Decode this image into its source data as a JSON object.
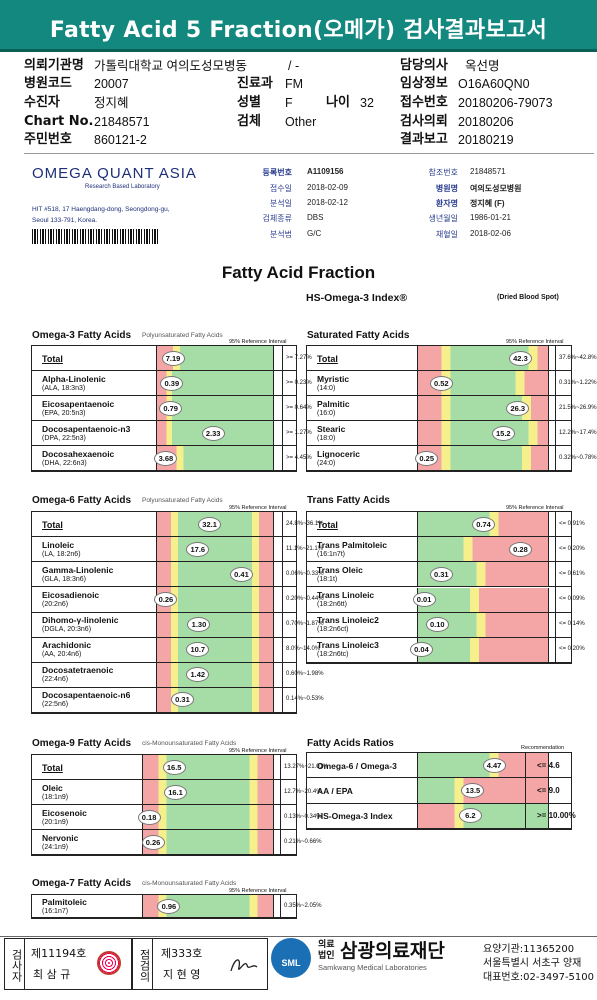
{
  "header": {
    "title": "Fatty Acid 5 Fraction(오메가) 검사결과보고서"
  },
  "patient": {
    "institution_label": "의뢰기관명",
    "institution": "가톨릭대학교 여의도성모병동",
    "institution_extra": "/ -",
    "doctor_label": "담당의사",
    "doctor": "옥선명",
    "hospital_code_label": "병원코드",
    "hospital_code": "20007",
    "dept_label": "진료과",
    "dept": "FM",
    "clinical_label": "임상정보",
    "clinical": "O16A60QN0",
    "examinee_label": "수진자",
    "examinee": "정지혜",
    "sex_label": "성별",
    "sex": "F",
    "age_label": "나이",
    "age": "32",
    "reception_label": "접수번호",
    "reception": "20180206-79073",
    "chart_label": "Chart No.",
    "chart": "21848571",
    "specimen_label": "검체",
    "specimen": "Other",
    "request_label": "검사의뢰",
    "request_date": "20180206",
    "id_label": "주민번호",
    "id": "860121-2",
    "report_label": "결과보고",
    "report_date": "20180219"
  },
  "lab": {
    "name": "OMEGA QUANT ASIA",
    "subtitle": "Research Based Laboratory",
    "address_line1": "HIT #518, 17 Haengdang-dong, Seongdong-gu,",
    "address_line2": "Seoul 133-791, Korea.",
    "reg_no_label": "등록번호",
    "reg_no": "A1109156",
    "received_label": "접수일",
    "received": "2018-02-09",
    "analyzed_label": "분석일",
    "analyzed": "2018-02-12",
    "specimen_type_label": "검체종류",
    "specimen_type": "DBS",
    "method_label": "분석법",
    "method": "G/C",
    "ref_no_label": "참조번호",
    "ref_no": "21848571",
    "hospital_label": "병원명",
    "hospital": "여의도성모병원",
    "patient_label": "환자명",
    "patient": "정지혜 (F)",
    "dob_label": "생년월일",
    "dob": "1986-01-21",
    "collected_label": "채혈일",
    "collected": "2018-02-06"
  },
  "report": {
    "title": "Fatty Acid Fraction",
    "index_label": "HS-Omega-3 Index®",
    "sample_label": "(Dried Blood Spot)"
  },
  "sections": {
    "omega3": {
      "title": "Omega-3 Fatty Acids",
      "subtitle": "Polyunsaturated Fatty Acids",
      "ref_header": "95% Reference Interval",
      "rows": [
        {
          "name": "Total",
          "sub": "",
          "value": "7.19",
          "ref": ">= 7.27%"
        },
        {
          "name": "Alpha-Linolenic",
          "sub": "(ALA, 18:3n3)",
          "value": "0.39",
          "ref": ">= 0.23%"
        },
        {
          "name": "Eicosapentaenoic",
          "sub": "(EPA, 20:5n3)",
          "value": "0.79",
          "ref": ">= 0.64%"
        },
        {
          "name": "Docosapentaenoic-n3",
          "sub": "(DPA, 22:5n3)",
          "value": "2.33",
          "ref": ">= 1.27%"
        },
        {
          "name": "Docosahexaenoic",
          "sub": "(DHA, 22:6n3)",
          "value": "3.68",
          "ref": ">= 4.45%"
        }
      ]
    },
    "saturated": {
      "title": "Saturated Fatty Acids",
      "ref_header": "95% Reference Interval",
      "rows": [
        {
          "name": "Total",
          "sub": "",
          "value": "42.3",
          "ref": "37.6%~42.8%"
        },
        {
          "name": "Myristic",
          "sub": "(14:0)",
          "value": "0.52",
          "ref": "0.31%~1.22%"
        },
        {
          "name": "Palmitic",
          "sub": "(16:0)",
          "value": "26.3",
          "ref": "21.5%~26.9%"
        },
        {
          "name": "Stearic",
          "sub": "(18:0)",
          "value": "15.2",
          "ref": "12.2%~17.4%"
        },
        {
          "name": "Lignoceric",
          "sub": "(24:0)",
          "value": "0.25",
          "ref": "0.32%~0.78%"
        }
      ]
    },
    "omega6": {
      "title": "Omega-6 Fatty Acids",
      "subtitle": "Polyunsaturated Fatty Acids",
      "ref_header": "95% Reference Interval",
      "rows": [
        {
          "name": "Total",
          "sub": "",
          "value": "32.1",
          "ref": "24.8%~36.1%"
        },
        {
          "name": "Linoleic",
          "sub": "(LA, 18:2n6)",
          "value": "17.6",
          "ref": "11.1%~21.1%"
        },
        {
          "name": "Gamma-Linolenic",
          "sub": "(GLA, 18:3n6)",
          "value": "0.41",
          "ref": "0.06%~0.33%"
        },
        {
          "name": "Eicosadienoic",
          "sub": "(20:2n6)",
          "value": "0.26",
          "ref": "0.20%~0.44%"
        },
        {
          "name": "Dihomo-γ-linolenic",
          "sub": "(DGLA, 20:3n6)",
          "value": "1.30",
          "ref": "0.70%~1.87%"
        },
        {
          "name": "Arachidonic",
          "sub": "(AA, 20:4n6)",
          "value": "10.7",
          "ref": "8.0%~14.0%"
        },
        {
          "name": "Docosatetraenoic",
          "sub": "(22:4n6)",
          "value": "1.42",
          "ref": "0.60%~1.98%"
        },
        {
          "name": "Docosapentaenoic-n6",
          "sub": "(22:5n6)",
          "value": "0.31",
          "ref": "0.14%~0.53%"
        }
      ]
    },
    "trans": {
      "title": "Trans Fatty Acids",
      "ref_header": "95% Reference Interval",
      "rows": [
        {
          "name": "Total",
          "sub": "",
          "value": "0.74",
          "ref": "<= 0.91%"
        },
        {
          "name": "Trans Palmitoleic",
          "sub": "(16:1n7t)",
          "value": "0.28",
          "ref": "<= 0.20%"
        },
        {
          "name": "Trans Oleic",
          "sub": "(18:1t)",
          "value": "0.31",
          "ref": "<= 0.61%"
        },
        {
          "name": "Trans Linoleic",
          "sub": "(18:2n6tt)",
          "value": "0.01",
          "ref": "<= 0.09%"
        },
        {
          "name": "Trans Linoleic2",
          "sub": "(18:2n6ct)",
          "value": "0.10",
          "ref": "<= 0.14%"
        },
        {
          "name": "Trans Linoleic3",
          "sub": "(18:2n6tc)",
          "value": "0.04",
          "ref": "<= 0.20%"
        }
      ]
    },
    "omega9": {
      "title": "Omega-9 Fatty Acids",
      "subtitle": "cis-Monounsaturated Fatty Acids",
      "ref_header": "95% Reference Interval",
      "rows": [
        {
          "name": "Total",
          "sub": "",
          "value": "16.5",
          "ref": "13.27%~21.01%"
        },
        {
          "name": "Oleic",
          "sub": "(18:1n9)",
          "value": "16.1",
          "ref": "12.7%~20.4%"
        },
        {
          "name": "Eicosenoic",
          "sub": "(20:1n9)",
          "value": "0.18",
          "ref": "0.13%~0.34%"
        },
        {
          "name": "Nervonic",
          "sub": "(24:1n9)",
          "value": "0.26",
          "ref": "0.21%~0.66%"
        }
      ]
    },
    "ratios": {
      "title": "Fatty Acids Ratios",
      "ref_header": "Recommendation",
      "rows": [
        {
          "name": "Omega-6 / Omega-3",
          "sub": "",
          "value": "4.47",
          "ref": "<= 4.6"
        },
        {
          "name": "AA / EPA",
          "sub": "",
          "value": "13.5",
          "ref": "<= 9.0"
        },
        {
          "name": "HS-Omega-3 Index",
          "sub": "",
          "value": "6.2",
          "ref": ">= 10.00%"
        }
      ]
    },
    "omega7": {
      "title": "Omega-7 Fatty Acids",
      "subtitle": "cis-Monounsaturated Fatty Acids",
      "ref_header": "95% Reference Interval",
      "rows": [
        {
          "name": "Palmitoleic",
          "sub": "(16:1n7)",
          "value": "0.96",
          "ref": "0.35%~2.05%"
        }
      ]
    }
  },
  "footer": {
    "tester_label": "검사자",
    "tester_no": "제11194호",
    "tester_name": "최 삼 규",
    "reviewer_label": "점검의",
    "reviewer_no": "제333호",
    "reviewer_name": "지 현 영",
    "logo_badge": "SML",
    "org_type_line1": "의료",
    "org_type_line2": "법인",
    "org_name": "삼광의료재단",
    "org_name_en": "Samkwang Medical Laboratories",
    "org_code": "요양기관:11365200",
    "org_address": "서울특별시 서초구 양재",
    "org_phone": "대표번호:02-3497-5100"
  },
  "colors": {
    "banner": "#13887e",
    "red": "#f4a6a6",
    "yellow": "#f5f08c",
    "green": "#a6dca6",
    "blue_text": "#2a3d8f"
  }
}
